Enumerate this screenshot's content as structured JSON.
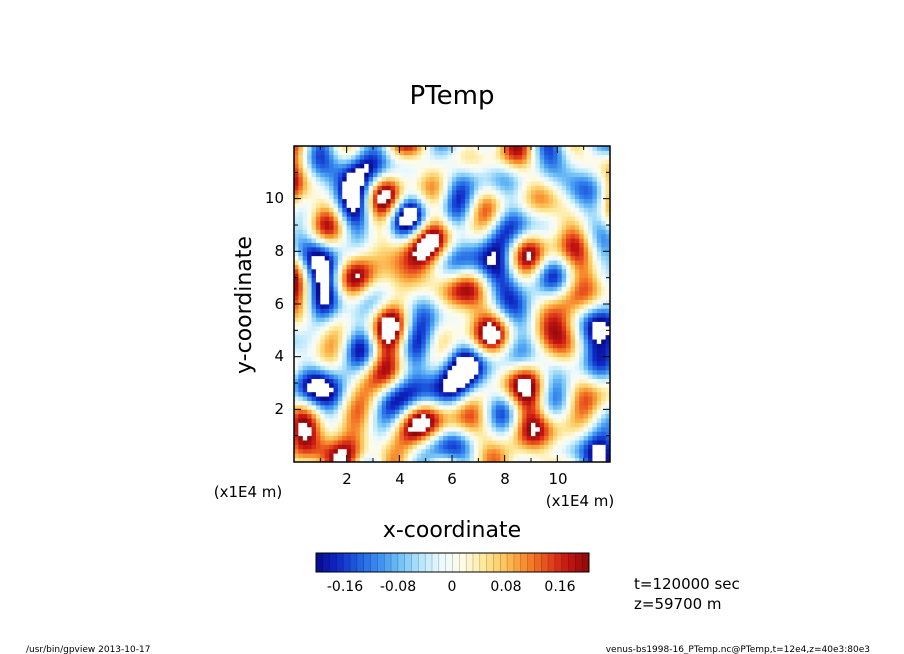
{
  "title": "PTemp",
  "x_axis": {
    "label": "x-coordinate",
    "unit_note": "(x1E4 m)",
    "ticks": [
      "2",
      "4",
      "6",
      "8",
      "10"
    ]
  },
  "y_axis": {
    "label": "y-coordinate",
    "unit_note": "(x1E4 m)",
    "ticks": [
      "2",
      "4",
      "6",
      "8",
      "10"
    ]
  },
  "colorbar": {
    "ticks": [
      "-0.16",
      "-0.08",
      "0",
      "0.08",
      "0.16"
    ],
    "colors": [
      "#0a0a8c",
      "#0f27c4",
      "#1f5fe0",
      "#3d8ff0",
      "#71c1f7",
      "#b7e6fb",
      "#eefafd",
      "#fffbe6",
      "#fde99a",
      "#fcc35a",
      "#f78a2c",
      "#e64b1c",
      "#c41512",
      "#8c0a0a"
    ]
  },
  "info": {
    "time": "t=120000 sec",
    "height": "z=59700 m"
  },
  "footer": {
    "left": "/usr/bin/gpview   2013-10-17",
    "right": "venus-bs1998-16_PTemp.nc@PTemp,t=12e4,z=40e3:80e3"
  },
  "chart_data": {
    "type": "heatmap",
    "title": "PTemp",
    "xlabel": "x-coordinate",
    "ylabel": "y-coordinate",
    "xlim": [
      0,
      12
    ],
    "ylim": [
      0,
      12
    ],
    "xticks": [
      2,
      4,
      6,
      8,
      10
    ],
    "yticks": [
      2,
      4,
      6,
      8,
      10
    ],
    "axis_scale_note": "x1E4 m",
    "colorbar_range": [
      -0.2,
      0.2
    ],
    "colorbar_ticks": [
      -0.16,
      -0.08,
      0,
      0.08,
      0.16
    ],
    "out_of_range_color": "#ffffff"
  }
}
